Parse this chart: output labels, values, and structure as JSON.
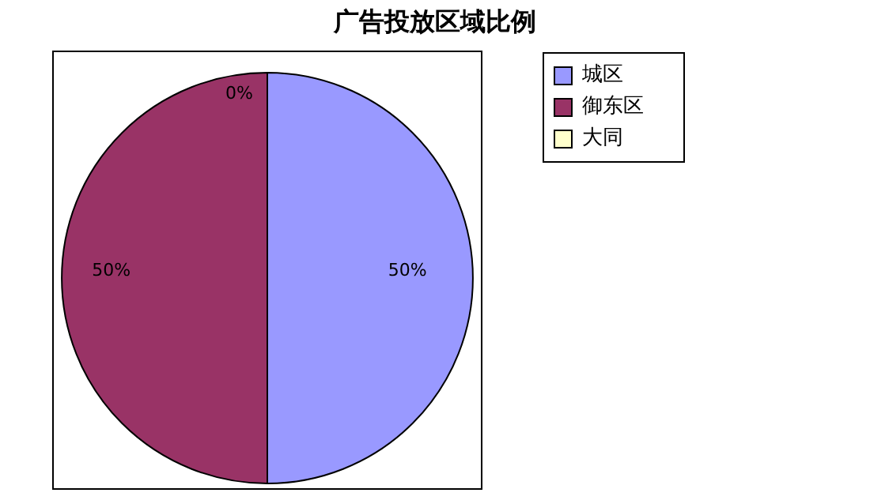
{
  "chart_data": {
    "type": "pie",
    "title": "广告投放区域比例",
    "categories": [
      "城区",
      "御东区",
      "大同"
    ],
    "values": [
      50,
      50,
      0
    ],
    "value_labels": [
      "50%",
      "50%",
      "0%"
    ],
    "colors": [
      "#9999ff",
      "#993366",
      "#ffffcc"
    ],
    "legend": "right"
  }
}
